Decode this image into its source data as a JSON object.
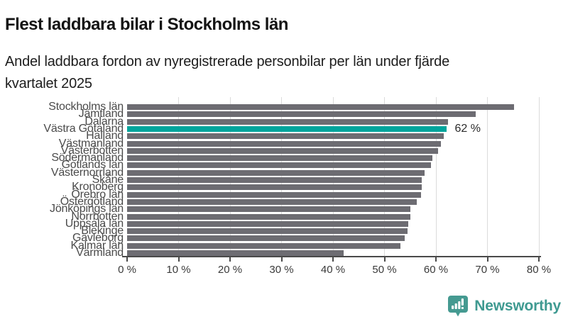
{
  "title": "Flest laddbara bilar i Stockholms län",
  "subtitle": "Andel laddbara fordon av nyregistrerade personbilar per län under fjärde\nkvartalet 2025",
  "chart_data": {
    "type": "bar",
    "orientation": "horizontal",
    "title": "Flest laddbara bilar i Stockholms län",
    "subtitle": "Andel laddbara fordon av nyregistrerade personbilar per län under fjärde kvartalet 2025",
    "categories": [
      "Stockholms län",
      "Jämtland",
      "Dalarna",
      "Västra Götaland",
      "Halland",
      "Västmanland",
      "Västerbotten",
      "Södermanland",
      "Gotlands län",
      "Västernorrland",
      "Skåne",
      "Kronoberg",
      "Örebro län",
      "Östergötland",
      "Jönköpings län",
      "Norrbotten",
      "Uppsala län",
      "Blekinge",
      "Gävleborg",
      "Kalmar län",
      "Värmland"
    ],
    "values": [
      75.2,
      67.7,
      62.3,
      62,
      61.5,
      61,
      60.4,
      59.3,
      59,
      57.8,
      57.3,
      57.2,
      57.1,
      56.3,
      55.1,
      55,
      54.6,
      54.5,
      53.9,
      53.1,
      42.1
    ],
    "unit": "%",
    "xlabel": "",
    "ylabel": "",
    "xlim": [
      0,
      80
    ],
    "x_ticks": [
      "0 %",
      "10 %",
      "20 %",
      "30 %",
      "40 %",
      "50 %",
      "60 %",
      "70 %",
      "80 %"
    ],
    "grid": true,
    "legend": "none",
    "highlight": {
      "category": "Västra Götaland",
      "label": "62 %"
    },
    "colors": {
      "bar": "#6d6c72",
      "highlight": "#00a49c",
      "gridline": "#dbdbdb",
      "axis": "#4a4a4a"
    }
  },
  "footer": {
    "brand": "Newsworthy",
    "logo_icon": "newsworthy-chart-bubble-icon",
    "brand_color": "#3f9a91"
  }
}
